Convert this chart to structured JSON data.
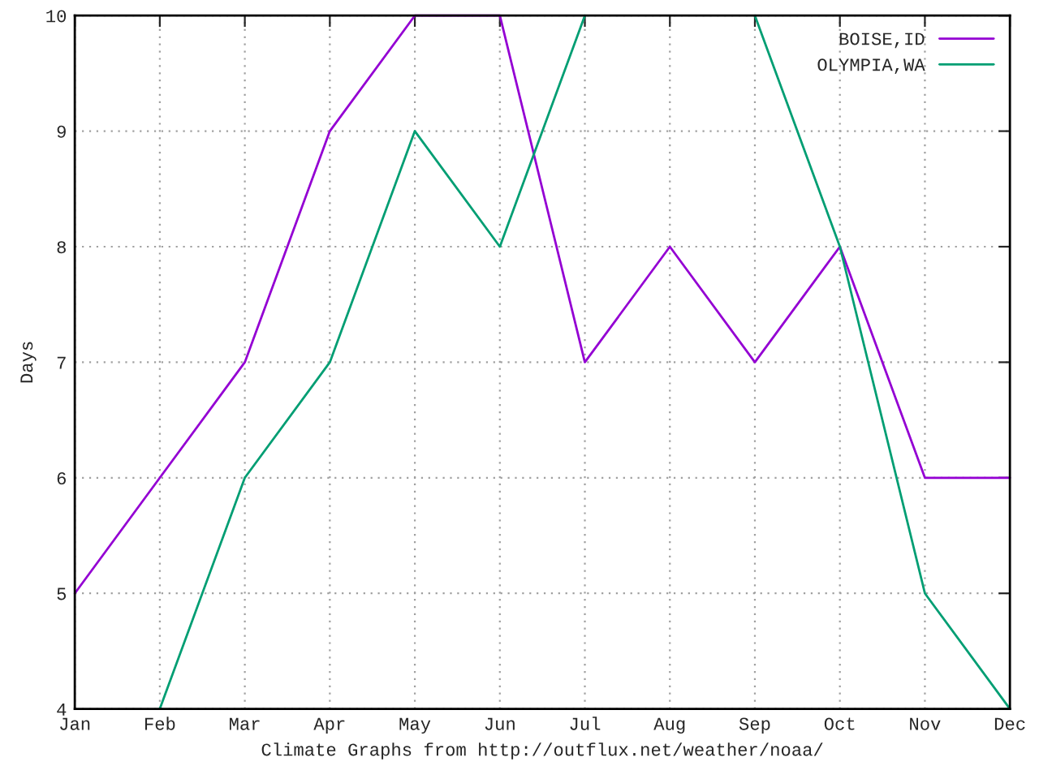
{
  "chart_data": {
    "type": "line",
    "categories": [
      "Jan",
      "Feb",
      "Mar",
      "Apr",
      "May",
      "Jun",
      "Jul",
      "Aug",
      "Sep",
      "Oct",
      "Nov",
      "Dec"
    ],
    "series": [
      {
        "name": "BOISE,ID",
        "color": "#9400d3",
        "values": [
          5,
          6,
          7,
          9,
          10,
          10,
          7,
          8,
          7,
          8,
          6,
          6
        ]
      },
      {
        "name": "OLYMPIA,WA",
        "color": "#009e73",
        "values": [
          null,
          4,
          6,
          7,
          9,
          8,
          10,
          null,
          10,
          8,
          5,
          4
        ]
      }
    ],
    "ylabel": "Days",
    "xlabel": "Climate Graphs from http://outflux.net/weather/noaa/",
    "ylim": [
      4,
      10
    ],
    "yticks": [
      4,
      5,
      6,
      7,
      8,
      9,
      10
    ],
    "grid": true,
    "legend": "top right",
    "line_style": "solid",
    "marker": "none"
  }
}
